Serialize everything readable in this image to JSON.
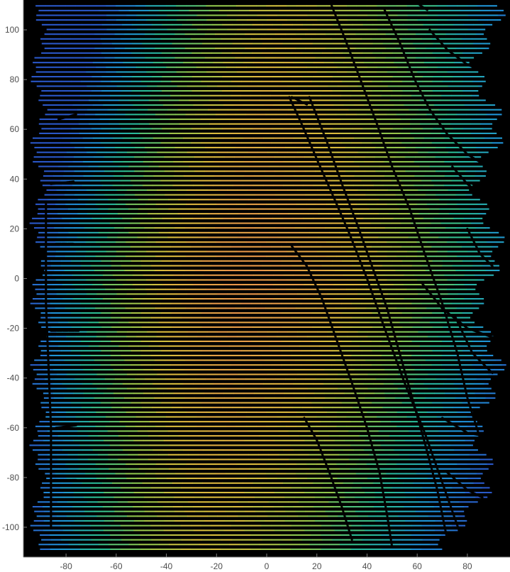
{
  "chart_data": {
    "type": "heatmap",
    "description_kind": "top-down lidar/point-cloud height image",
    "title": "",
    "xlabel": "",
    "ylabel": "",
    "xlim": [
      -97,
      97
    ],
    "ylim": [
      -112,
      112
    ],
    "xticks": [
      -80,
      -60,
      -40,
      -20,
      0,
      20,
      40,
      60,
      80
    ],
    "yticks": [
      -100,
      -80,
      -60,
      -40,
      -20,
      0,
      20,
      40,
      60,
      80,
      100
    ],
    "grid": false,
    "colormap": "parula-like (blue low → green → yellow/orange high)",
    "background_color": "#000000",
    "scan_row_spacing": 1.9,
    "data_extent": {
      "x_min": -91,
      "x_max": 92,
      "y_min": -109,
      "y_max": 110
    },
    "ridge": {
      "x_at_bottom": -25,
      "x_at_top": 5
    },
    "dark_lines": [
      {
        "points": [
          [
            9,
            73
          ],
          [
            14,
            62
          ],
          [
            20,
            48
          ],
          [
            27,
            32
          ],
          [
            33,
            18
          ],
          [
            40,
            0
          ],
          [
            47,
            -20
          ],
          [
            55,
            -42
          ],
          [
            63,
            -62
          ],
          [
            70,
            -82
          ],
          [
            78,
            -105
          ]
        ]
      },
      {
        "points": [
          [
            17,
            73
          ],
          [
            24,
            55
          ],
          [
            30,
            38
          ],
          [
            36,
            22
          ],
          [
            42,
            5
          ],
          [
            48,
            -12
          ],
          [
            53,
            -30
          ],
          [
            58,
            -48
          ],
          [
            63,
            -66
          ],
          [
            68,
            -85
          ],
          [
            72,
            -105
          ]
        ]
      },
      {
        "points": [
          [
            25,
            112
          ],
          [
            31,
            97
          ],
          [
            37,
            81
          ],
          [
            44,
            62
          ],
          [
            50,
            45
          ],
          [
            57,
            28
          ],
          [
            63,
            10
          ],
          [
            70,
            -10
          ],
          [
            76,
            -30
          ],
          [
            80,
            -48
          ],
          [
            85,
            -64
          ]
        ]
      },
      {
        "points": [
          [
            47,
            108
          ],
          [
            53,
            95
          ],
          [
            59,
            80
          ],
          [
            65,
            68
          ],
          [
            72,
            58
          ],
          [
            80,
            50
          ],
          [
            88,
            45
          ]
        ]
      },
      {
        "points": [
          [
            10,
            13
          ],
          [
            16,
            5
          ],
          [
            22,
            -8
          ],
          [
            28,
            -25
          ],
          [
            34,
            -42
          ],
          [
            40,
            -60
          ],
          [
            45,
            -78
          ],
          [
            48,
            -95
          ],
          [
            50,
            -108
          ]
        ]
      },
      {
        "points": [
          [
            15,
            -56
          ],
          [
            20,
            -65
          ],
          [
            25,
            -78
          ],
          [
            30,
            -92
          ],
          [
            34,
            -105
          ]
        ]
      },
      {
        "points": [
          [
            65,
            100
          ],
          [
            72,
            92
          ],
          [
            80,
            86
          ],
          [
            88,
            83
          ]
        ]
      },
      {
        "points": [
          [
            74,
            45
          ],
          [
            80,
            38
          ],
          [
            87,
            33
          ],
          [
            91,
            30
          ]
        ]
      },
      {
        "points": [
          [
            80,
            20
          ],
          [
            85,
            10
          ],
          [
            90,
            5
          ]
        ]
      },
      {
        "points": [
          [
            62,
            -2
          ],
          [
            70,
            -12
          ],
          [
            80,
            -20
          ],
          [
            91,
            -24
          ]
        ]
      },
      {
        "points": [
          [
            75,
            -15
          ],
          [
            82,
            -30
          ],
          [
            90,
            -38
          ]
        ]
      },
      {
        "points": [
          [
            70,
            -56
          ],
          [
            80,
            -62
          ],
          [
            90,
            -64
          ]
        ]
      },
      {
        "points": [
          [
            72,
            -78
          ],
          [
            80,
            -85
          ],
          [
            86,
            -88
          ]
        ]
      },
      {
        "points": [
          [
            -83,
            64
          ],
          [
            -76,
            66
          ]
        ]
      },
      {
        "points": [
          [
            -86,
            38
          ],
          [
            -77,
            39
          ]
        ]
      },
      {
        "points": [
          [
            -84,
            14
          ],
          [
            -77,
            14
          ]
        ]
      },
      {
        "points": [
          [
            -86,
            -21
          ],
          [
            -75,
            -21
          ]
        ]
      },
      {
        "points": [
          [
            -84,
            -60
          ],
          [
            -76,
            -59
          ]
        ]
      },
      {
        "points": [
          [
            -85,
            -81
          ],
          [
            -76,
            -81
          ]
        ]
      },
      {
        "points": [
          [
            -88,
            30
          ],
          [
            -88,
            -10
          ],
          [
            -86,
            -60
          ],
          [
            -86,
            -100
          ]
        ]
      },
      {
        "points": [
          [
            10,
            73
          ],
          [
            16,
            70
          ]
        ]
      },
      {
        "points": [
          [
            36,
            84
          ],
          [
            40,
            84
          ]
        ]
      },
      {
        "points": [
          [
            61,
            110
          ],
          [
            64,
            108
          ]
        ]
      }
    ]
  }
}
